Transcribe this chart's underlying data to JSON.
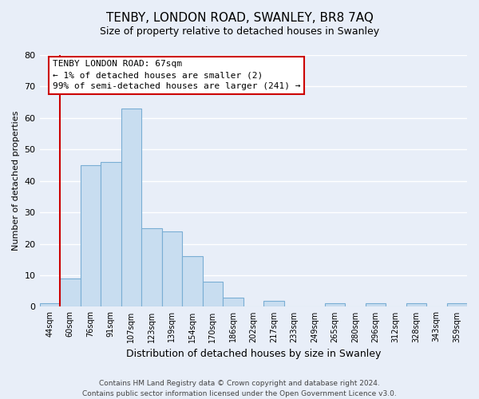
{
  "title": "TENBY, LONDON ROAD, SWANLEY, BR8 7AQ",
  "subtitle": "Size of property relative to detached houses in Swanley",
  "xlabel": "Distribution of detached houses by size in Swanley",
  "ylabel": "Number of detached properties",
  "bin_labels": [
    "44sqm",
    "60sqm",
    "76sqm",
    "91sqm",
    "107sqm",
    "123sqm",
    "139sqm",
    "154sqm",
    "170sqm",
    "186sqm",
    "202sqm",
    "217sqm",
    "233sqm",
    "249sqm",
    "265sqm",
    "280sqm",
    "296sqm",
    "312sqm",
    "328sqm",
    "343sqm",
    "359sqm"
  ],
  "bar_heights": [
    1,
    9,
    45,
    46,
    63,
    25,
    24,
    16,
    8,
    3,
    0,
    2,
    0,
    0,
    1,
    0,
    1,
    0,
    1,
    0,
    1
  ],
  "bar_color": "#c8ddf0",
  "bar_edge_color": "#7aaed4",
  "vline_x": 1,
  "vline_color": "#cc0000",
  "ylim": [
    0,
    80
  ],
  "yticks": [
    0,
    10,
    20,
    30,
    40,
    50,
    60,
    70,
    80
  ],
  "annotation_title": "TENBY LONDON ROAD: 67sqm",
  "annotation_line1": "← 1% of detached houses are smaller (2)",
  "annotation_line2": "99% of semi-detached houses are larger (241) →",
  "annotation_box_color": "#ffffff",
  "annotation_box_edge": "#cc0000",
  "footer_line1": "Contains HM Land Registry data © Crown copyright and database right 2024.",
  "footer_line2": "Contains public sector information licensed under the Open Government Licence v3.0.",
  "background_color": "#e8eef8",
  "grid_color": "#ffffff"
}
